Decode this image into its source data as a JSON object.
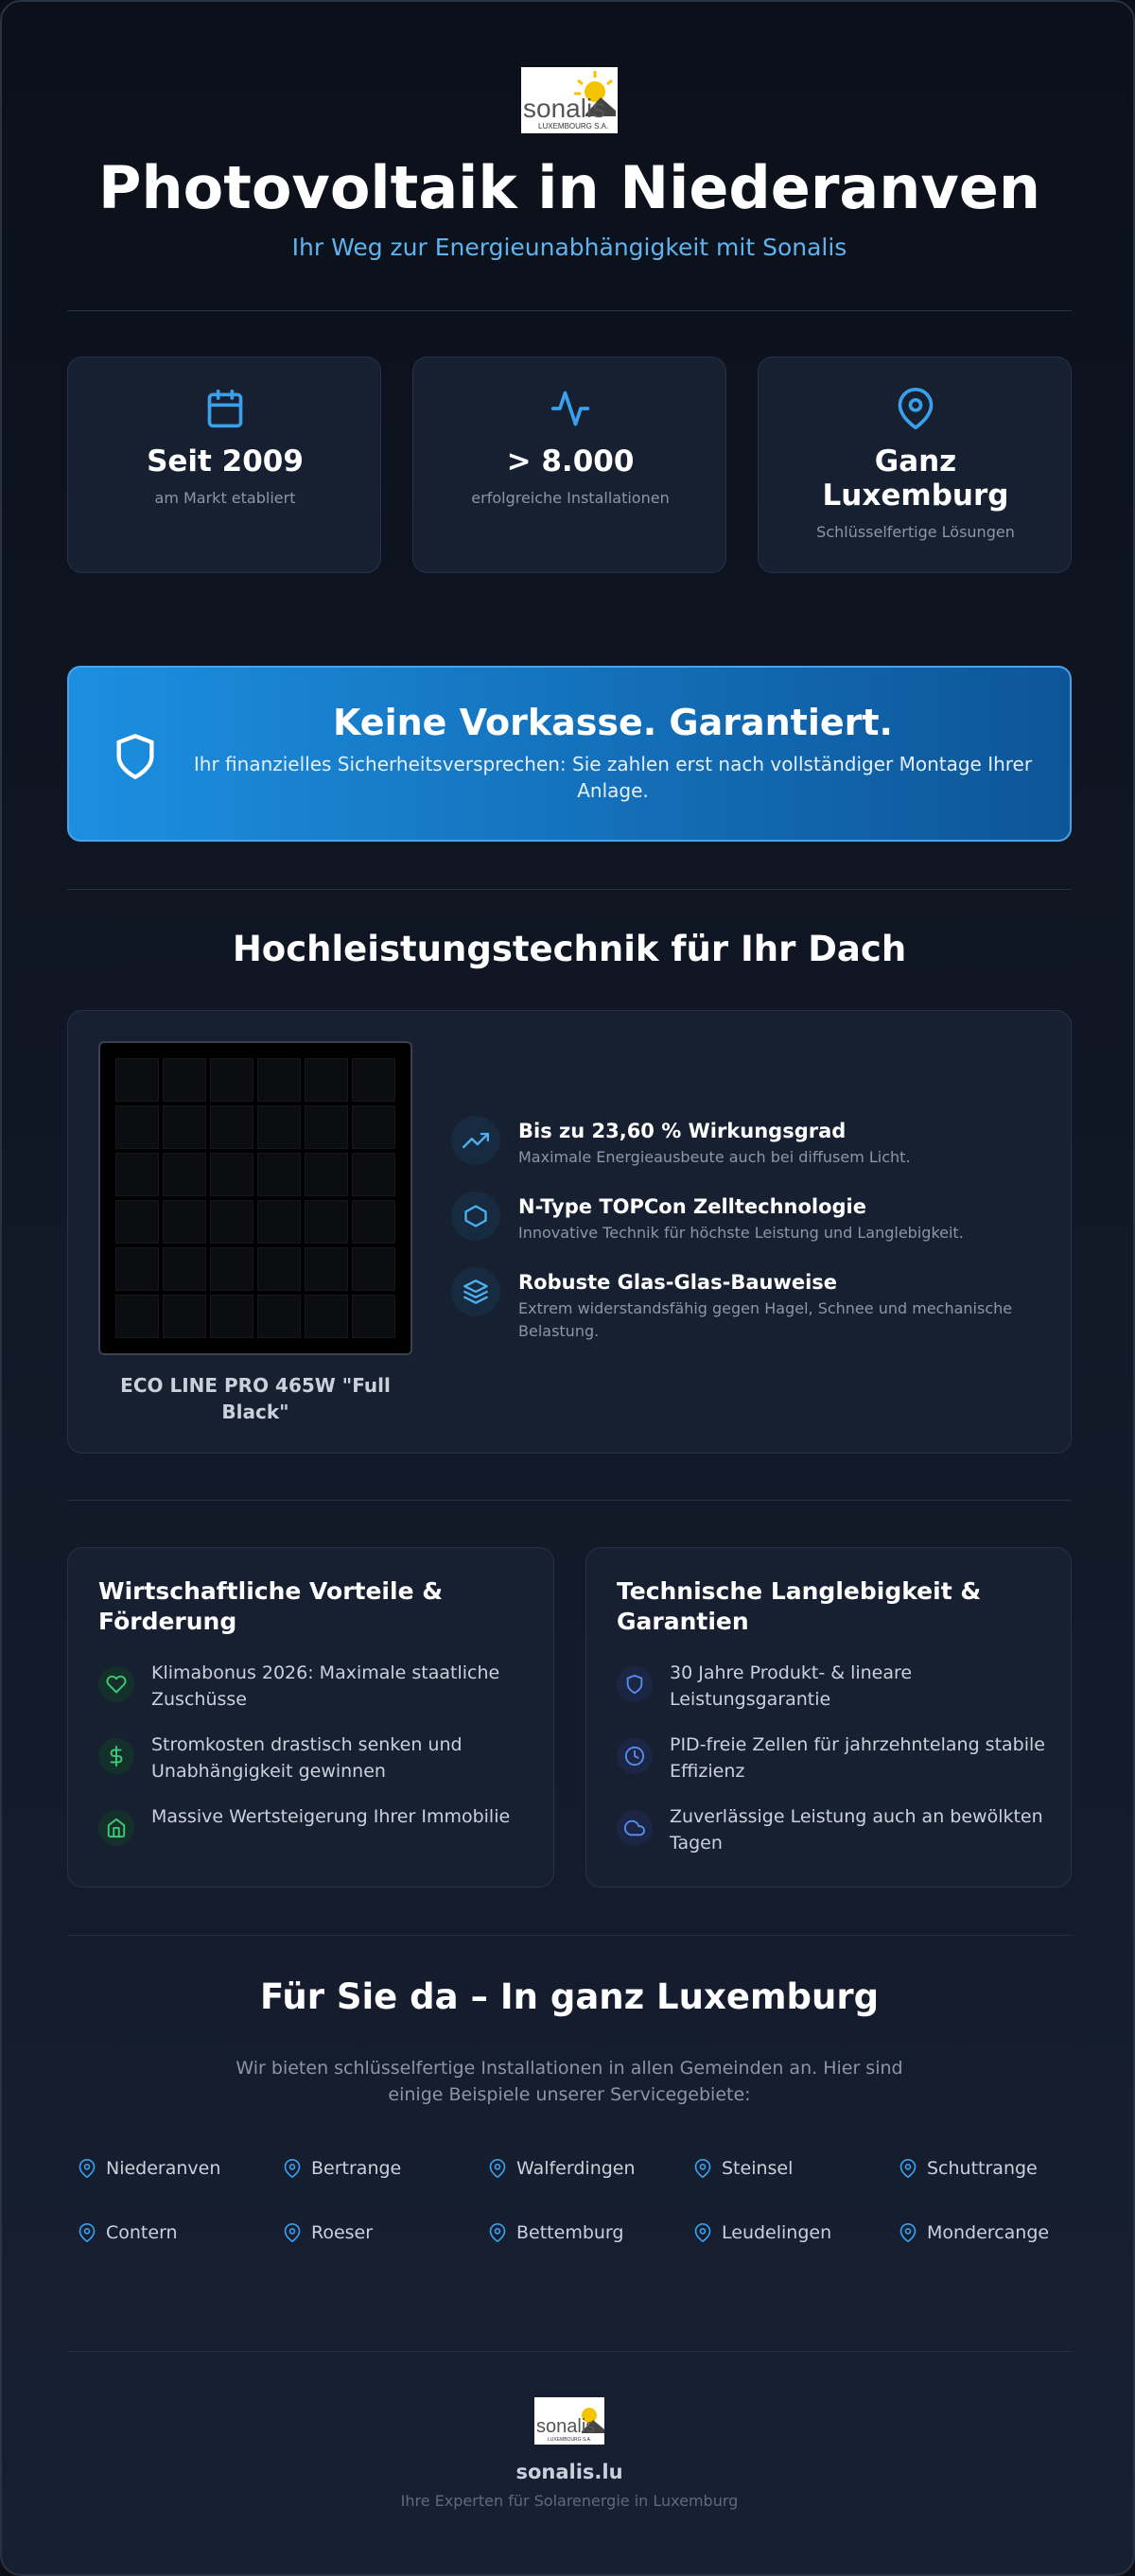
{
  "header": {
    "logo": {
      "name": "sonalis",
      "sub": "LUXEMBOURG S.A."
    },
    "title": "Photovoltaik in Niederanven",
    "subtitle": "Ihr Weg zur Energieunabhängigkeit mit Sonalis"
  },
  "stats": [
    {
      "value": "Seit 2009",
      "label": "am Markt etabliert"
    },
    {
      "value": "> 8.000",
      "label": "erfolgreiche Installationen"
    },
    {
      "value": "Ganz Luxemburg",
      "label": "Schlüsselfertige Lösungen"
    }
  ],
  "banner": {
    "title": "Keine Vorkasse. Garantiert.",
    "text": "Ihr finanzielles Sicherheitsversprechen: Sie zahlen erst nach vollständiger Montage Ihrer Anlage."
  },
  "tech": {
    "heading": "Hochleistungstechnik für Ihr Dach",
    "panel_caption": "ECO LINE PRO 465W \"Full Black\"",
    "features": [
      {
        "title": "Bis zu 23,60 % Wirkungsgrad",
        "text": "Maximale Energieausbeute auch bei diffusem Licht."
      },
      {
        "title": "N-Type TOPCon Zelltechnologie",
        "text": "Innovative Technik für höchste Leistung und Langlebigkeit."
      },
      {
        "title": "Robuste Glas-Glas-Bauweise",
        "text": "Extrem widerstandsfähig gegen Hagel, Schnee und mechanische Belastung."
      }
    ]
  },
  "benefits": [
    {
      "heading": "Wirtschaftliche Vorteile & Förderung",
      "items": [
        "Klimabonus 2026: Maximale staatliche Zuschüsse",
        "Stromkosten drastisch senken und Unabhängigkeit gewinnen",
        "Massive Wertsteigerung Ihrer Immobilie"
      ]
    },
    {
      "heading": "Technische Langlebigkeit & Garantien",
      "items": [
        "30 Jahre Produkt- & lineare Leistungsgarantie",
        "PID-freie Zellen für jahrzehntelang stabile Effizienz",
        "Zuverlässige Leistung auch an bewölkten Tagen"
      ]
    }
  ],
  "service": {
    "heading": "Für Sie da – In ganz Luxemburg",
    "text": "Wir bieten schlüsselfertige Installationen in allen Gemeinden an. Hier sind einige Beispiele unserer Servicegebiete:",
    "locations": [
      "Niederanven",
      "Bertrange",
      "Walferdingen",
      "Steinsel",
      "Schuttrange",
      "Contern",
      "Roeser",
      "Bettemburg",
      "Leudelingen",
      "Mondercange"
    ]
  },
  "footer": {
    "site": "sonalis.lu",
    "tagline": "Ihre Experten für Solarenergie in Luxemburg"
  }
}
